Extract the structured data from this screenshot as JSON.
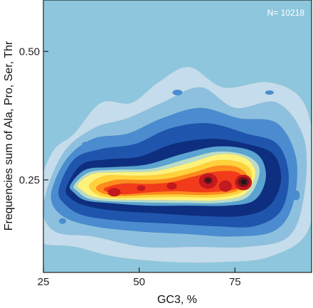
{
  "chart_data": {
    "type": "heatmap",
    "subtype": "filled-contour density",
    "xlabel": "GC3, %",
    "ylabel": "Frequencies sum of Ala, Pro, Ser, Thr",
    "annotation": "N= 10218",
    "xlim": [
      25,
      95
    ],
    "ylim": [
      0.07,
      0.6
    ],
    "x_ticks": [
      25,
      50,
      75
    ],
    "y_ticks": [
      0.25,
      0.5
    ],
    "y_tick_labels": [
      "0.25",
      "0.50"
    ],
    "grid": false,
    "legend": "none",
    "color_levels": [
      "#c4dceb",
      "#8cc0de",
      "#4a8ccf",
      "#1f55ad",
      "#0e2e80",
      "#5ba3d0",
      "#b9dcc9",
      "#fff27a",
      "#ffd23c",
      "#ff8a1e",
      "#f23b1b",
      "#c3191f",
      "#6e121c",
      "#1a1a1a"
    ],
    "background_color": "#8ec7dd",
    "density_peaks": [
      {
        "x": 35,
        "y": 0.245,
        "level": 7
      },
      {
        "x": 43,
        "y": 0.225,
        "level": 11
      },
      {
        "x": 50,
        "y": 0.232,
        "level": 11
      },
      {
        "x": 58,
        "y": 0.238,
        "level": 11
      },
      {
        "x": 64,
        "y": 0.252,
        "level": 11
      },
      {
        "x": 68,
        "y": 0.25,
        "level": 12
      },
      {
        "x": 72,
        "y": 0.24,
        "level": 12
      },
      {
        "x": 77,
        "y": 0.245,
        "level": 13
      }
    ]
  }
}
